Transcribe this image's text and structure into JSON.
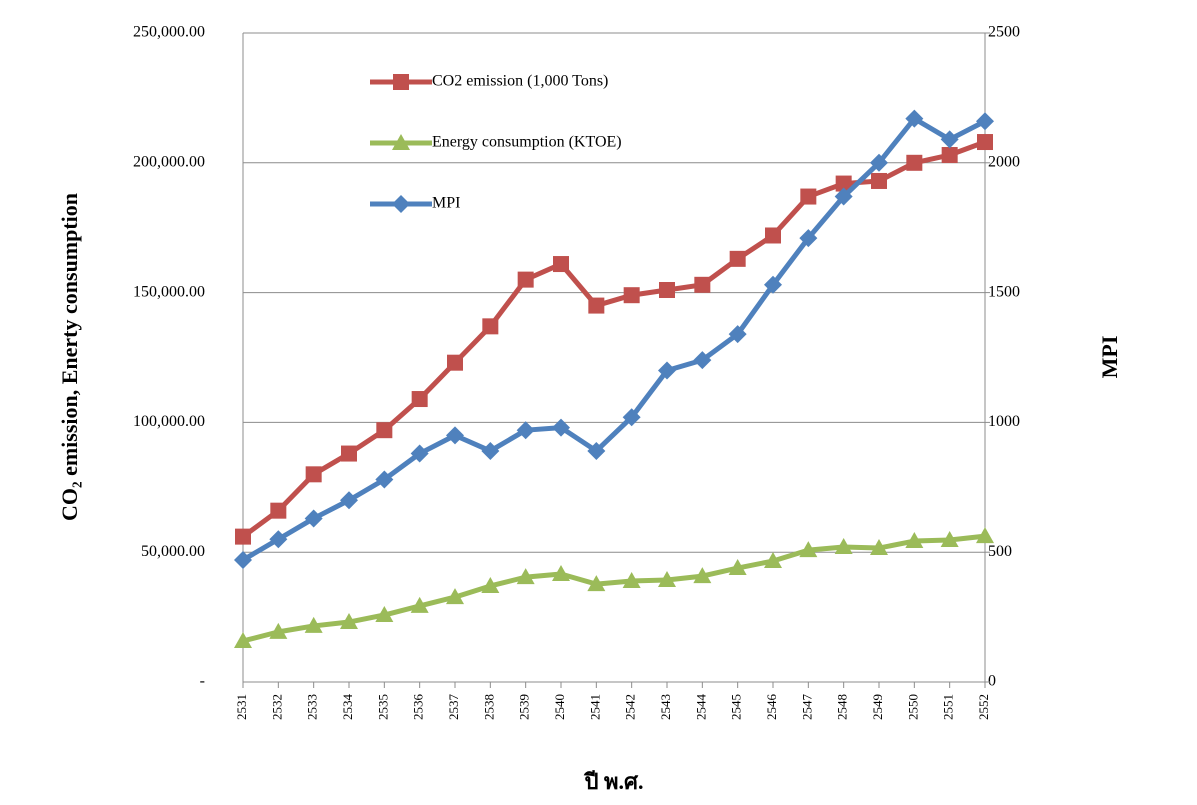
{
  "chart_data": {
    "type": "line",
    "x_label": "ปี พ.ศ.",
    "y_label": "CO₂ emission, Enerty consumption",
    "y2_label": "MPI",
    "categories": [
      "2531",
      "2532",
      "2533",
      "2534",
      "2535",
      "2536",
      "2537",
      "2538",
      "2539",
      "2540",
      "2541",
      "2542",
      "2543",
      "2544",
      "2545",
      "2546",
      "2547",
      "2548",
      "2549",
      "2550",
      "2551",
      "2552"
    ],
    "series": [
      {
        "name": "CO2 emission (1,000 Tons)",
        "color": "#c0504d",
        "marker": "square",
        "values": [
          56000,
          66000,
          80000,
          88000,
          97000,
          109000,
          123000,
          137000,
          155000,
          161000,
          145000,
          149000,
          151000,
          153000,
          163000,
          172000,
          187000,
          192000,
          193000,
          200000,
          203000,
          208000
        ]
      },
      {
        "name": "Energy consumption (KTOE)",
        "color": "#9bbb59",
        "marker": "triangle",
        "values": [
          15800,
          19300,
          21600,
          23100,
          25800,
          29300,
          32700,
          37000,
          40400,
          41600,
          37700,
          38900,
          39300,
          40800,
          43900,
          46600,
          50800,
          52000,
          51600,
          54300,
          54700,
          56200
        ]
      },
      {
        "name": "MPI",
        "color": "#4f81bd",
        "marker": "diamond",
        "axis": "y2",
        "values": [
          470,
          550,
          630,
          700,
          780,
          880,
          950,
          890,
          970,
          980,
          890,
          1020,
          1200,
          1240,
          1340,
          1530,
          1710,
          1870,
          2000,
          2170,
          2090,
          2160
        ]
      }
    ],
    "ylim": [
      0,
      250000
    ],
    "yticks": [
      {
        "value": 0,
        "label": "-"
      },
      {
        "value": 50000,
        "label": "50,000.00"
      },
      {
        "value": 100000,
        "label": "100,000.00"
      },
      {
        "value": 150000,
        "label": "150,000.00"
      },
      {
        "value": 200000,
        "label": "200,000.00"
      },
      {
        "value": 250000,
        "label": "250,000.00"
      }
    ],
    "y2lim": [
      0,
      2500
    ],
    "y2ticks": [
      0,
      500,
      1000,
      1500,
      2000,
      2500
    ],
    "grid": true,
    "legend": "upper left"
  }
}
